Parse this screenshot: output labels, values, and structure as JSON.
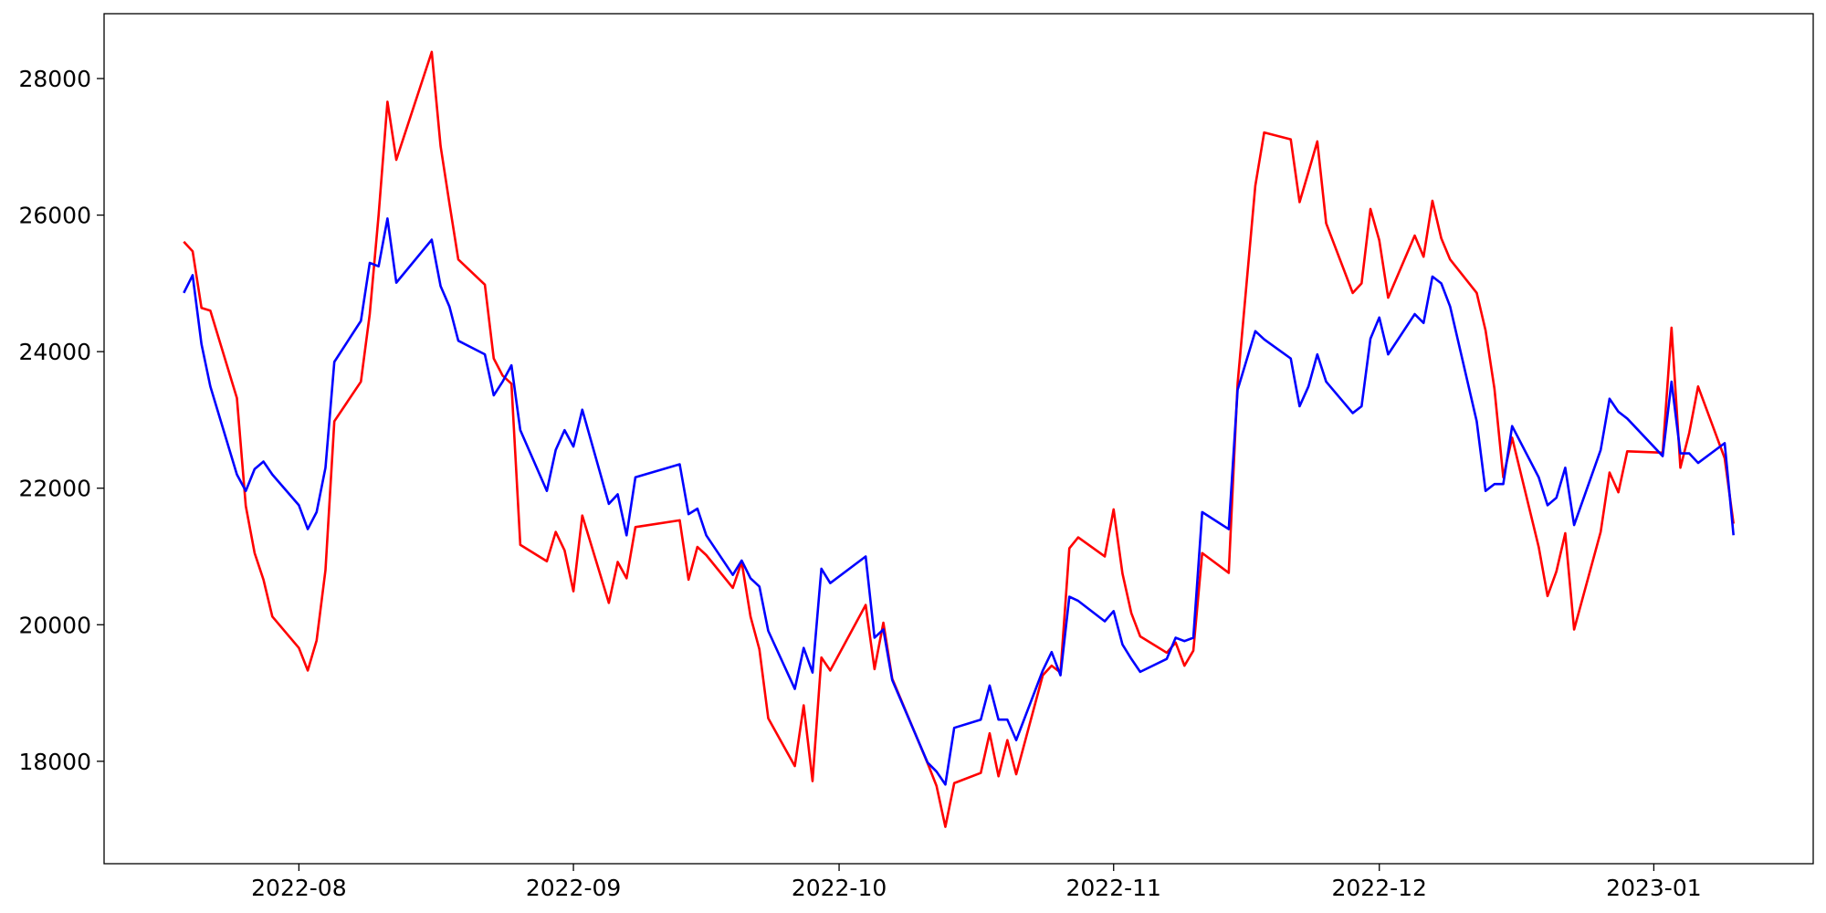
{
  "chart_data": {
    "type": "line",
    "x": [
      "2022-07-19",
      "2022-07-20",
      "2022-07-21",
      "2022-07-22",
      "2022-07-25",
      "2022-07-26",
      "2022-07-27",
      "2022-07-28",
      "2022-07-29",
      "2022-08-01",
      "2022-08-02",
      "2022-08-03",
      "2022-08-04",
      "2022-08-05",
      "2022-08-08",
      "2022-08-09",
      "2022-08-10",
      "2022-08-11",
      "2022-08-12",
      "2022-08-16",
      "2022-08-17",
      "2022-08-18",
      "2022-08-19",
      "2022-08-22",
      "2022-08-23",
      "2022-08-24",
      "2022-08-25",
      "2022-08-26",
      "2022-08-29",
      "2022-08-30",
      "2022-08-31",
      "2022-09-01",
      "2022-09-02",
      "2022-09-05",
      "2022-09-06",
      "2022-09-07",
      "2022-09-08",
      "2022-09-13",
      "2022-09-14",
      "2022-09-15",
      "2022-09-16",
      "2022-09-19",
      "2022-09-20",
      "2022-09-21",
      "2022-09-22",
      "2022-09-23",
      "2022-09-26",
      "2022-09-27",
      "2022-09-28",
      "2022-09-29",
      "2022-09-30",
      "2022-10-04",
      "2022-10-05",
      "2022-10-06",
      "2022-10-07",
      "2022-10-11",
      "2022-10-12",
      "2022-10-13",
      "2022-10-14",
      "2022-10-17",
      "2022-10-18",
      "2022-10-19",
      "2022-10-20",
      "2022-10-21",
      "2022-10-24",
      "2022-10-25",
      "2022-10-26",
      "2022-10-27",
      "2022-10-28",
      "2022-10-31",
      "2022-11-01",
      "2022-11-02",
      "2022-11-03",
      "2022-11-04",
      "2022-11-07",
      "2022-11-08",
      "2022-11-09",
      "2022-11-10",
      "2022-11-11",
      "2022-11-14",
      "2022-11-15",
      "2022-11-17",
      "2022-11-18",
      "2022-11-21",
      "2022-11-22",
      "2022-11-23",
      "2022-11-24",
      "2022-11-25",
      "2022-11-28",
      "2022-11-29",
      "2022-11-30",
      "2022-12-01",
      "2022-12-02",
      "2022-12-05",
      "2022-12-06",
      "2022-12-07",
      "2022-12-08",
      "2022-12-09",
      "2022-12-12",
      "2022-12-13",
      "2022-12-14",
      "2022-12-15",
      "2022-12-16",
      "2022-12-19",
      "2022-12-20",
      "2022-12-21",
      "2022-12-22",
      "2022-12-23",
      "2022-12-26",
      "2022-12-27",
      "2022-12-28",
      "2022-12-29",
      "2023-01-02",
      "2023-01-03",
      "2023-01-04",
      "2023-01-05",
      "2023-01-06",
      "2023-01-09",
      "2023-01-10"
    ],
    "series": [
      {
        "color": "#ff0000",
        "values": [
          25610,
          25470,
          24640,
          24600,
          23320,
          21740,
          21050,
          20660,
          20120,
          19660,
          19330,
          19770,
          20800,
          22980,
          23560,
          24550,
          26000,
          27660,
          26810,
          28390,
          27010,
          26170,
          25350,
          24980,
          23900,
          23650,
          23530,
          21170,
          20930,
          21360,
          21090,
          20490,
          21600,
          20320,
          20920,
          20680,
          21430,
          21530,
          20660,
          21140,
          21020,
          20540,
          20920,
          20120,
          19640,
          18630,
          17930,
          18820,
          17710,
          19520,
          19330,
          20290,
          19350,
          20030,
          19210,
          17970,
          17640,
          17040,
          17680,
          17830,
          18410,
          17780,
          18310,
          17810,
          19260,
          19400,
          19300,
          21120,
          21280,
          21000,
          21690,
          20750,
          20170,
          19830,
          19590,
          19740,
          19400,
          19620,
          21050,
          20760,
          23530,
          26430,
          27210,
          27110,
          26190,
          26630,
          27080,
          25880,
          24860,
          25000,
          26090,
          25630,
          24790,
          25700,
          25390,
          26210,
          25660,
          25350,
          24860,
          24310,
          23460,
          22160,
          22740,
          21140,
          20420,
          20780,
          21340,
          19930,
          21360,
          22230,
          21940,
          22540,
          22520,
          24350,
          22300,
          22810,
          23490,
          22440,
          21480
        ]
      },
      {
        "color": "#0000ff",
        "values": [
          24860,
          25120,
          24110,
          23490,
          22200,
          21960,
          22280,
          22390,
          22200,
          21750,
          21400,
          21650,
          22300,
          23850,
          24450,
          25300,
          25250,
          25950,
          25010,
          25640,
          24960,
          24660,
          24160,
          23960,
          23360,
          23560,
          23800,
          22850,
          21960,
          22560,
          22850,
          22610,
          23150,
          21770,
          21910,
          21310,
          22160,
          22350,
          21620,
          21700,
          21310,
          20730,
          20940,
          20680,
          20560,
          19910,
          19060,
          19660,
          19300,
          20820,
          20610,
          21000,
          19810,
          19930,
          19190,
          17980,
          17850,
          17660,
          18490,
          18610,
          19110,
          18610,
          18610,
          18310,
          19330,
          19600,
          19260,
          20410,
          20350,
          20050,
          20200,
          19710,
          19500,
          19310,
          19500,
          19810,
          19760,
          19810,
          21650,
          21400,
          23440,
          24300,
          24180,
          23900,
          23200,
          23490,
          23960,
          23560,
          23100,
          23200,
          24190,
          24500,
          23960,
          24550,
          24420,
          25100,
          25000,
          24660,
          22980,
          21960,
          22060,
          22060,
          22910,
          22160,
          21750,
          21860,
          22300,
          21460,
          22560,
          23310,
          23120,
          23020,
          22470,
          23560,
          22510,
          22510,
          22370,
          22660,
          21310
        ]
      }
    ],
    "xlim": [
      "2022-07-10",
      "2023-01-19"
    ],
    "xticks": [
      {
        "value": "2022-08-01",
        "label": "2022-08"
      },
      {
        "value": "2022-09-01",
        "label": "2022-09"
      },
      {
        "value": "2022-10-01",
        "label": "2022-10"
      },
      {
        "value": "2022-11-01",
        "label": "2022-11"
      },
      {
        "value": "2022-12-01",
        "label": "2022-12"
      },
      {
        "value": "2023-01-01",
        "label": "2023-01"
      }
    ],
    "ylim": [
      16500,
      28950
    ],
    "yticks": [
      18000,
      20000,
      22000,
      24000,
      26000,
      28000
    ],
    "grid": false
  }
}
